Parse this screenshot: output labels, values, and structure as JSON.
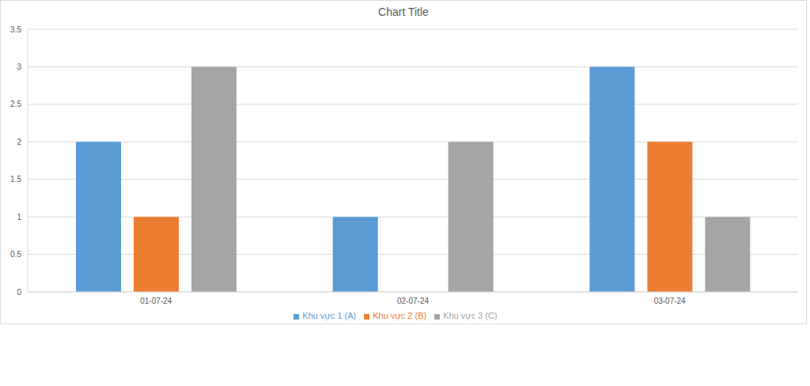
{
  "chart_data": {
    "type": "bar",
    "title": "Chart Title",
    "categories": [
      "01-07-24",
      "02-07-24",
      "03-07-24"
    ],
    "series": [
      {
        "name": "Khu vực 1 (A)",
        "color": "#5b9bd5",
        "values": [
          2,
          1,
          3
        ]
      },
      {
        "name": "Khu vực 2 (B)",
        "color": "#ed7d31",
        "values": [
          1,
          0,
          2
        ]
      },
      {
        "name": "Khu vực 3 (C)",
        "color": "#a5a5a5",
        "values": [
          3,
          2,
          1
        ]
      }
    ],
    "ylim": [
      0,
      3.5
    ],
    "yticks": [
      0,
      0.5,
      1,
      1.5,
      2,
      2.5,
      3,
      3.5
    ],
    "grid": true,
    "legend": "bottom"
  }
}
